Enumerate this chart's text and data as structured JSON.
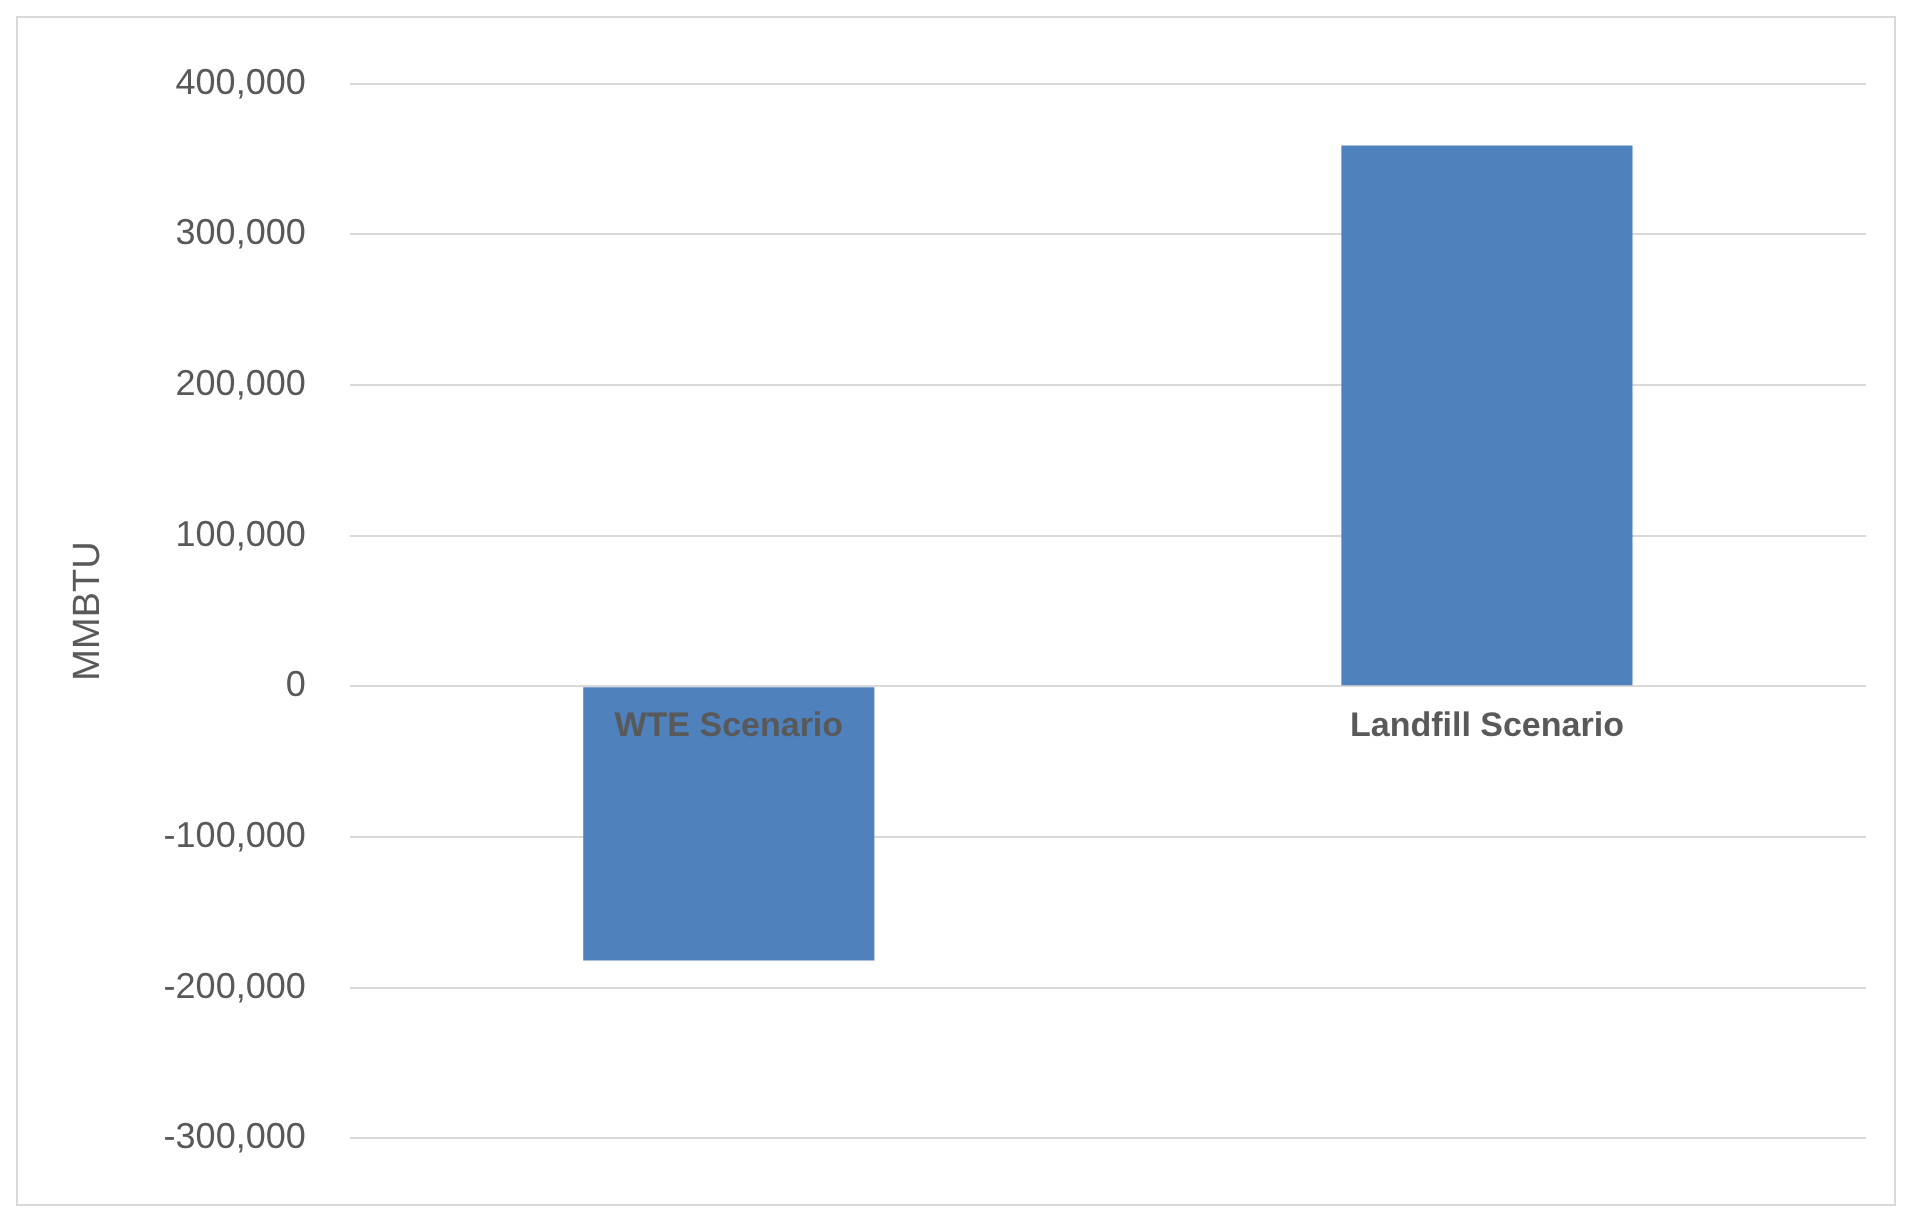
{
  "chart_data": {
    "type": "bar",
    "ylabel": "MMBTU",
    "categories": [
      "WTE Scenario",
      "Landfill Scenario"
    ],
    "values": [
      -182000,
      359000
    ],
    "color": "#4f81bd",
    "ylim": [
      -300000,
      400000
    ],
    "yticks": [
      {
        "value": -300000,
        "label": "-300,000"
      },
      {
        "value": -200000,
        "label": "-200,000"
      },
      {
        "value": -100000,
        "label": "-100,000"
      },
      0,
      {
        "value": 100000,
        "label": "100,000"
      },
      {
        "value": 200000,
        "label": "200,000"
      },
      {
        "value": 300000,
        "label": "300,000"
      },
      {
        "value": 400000,
        "label": "400,000"
      }
    ],
    "grid": "y",
    "legend": false
  }
}
